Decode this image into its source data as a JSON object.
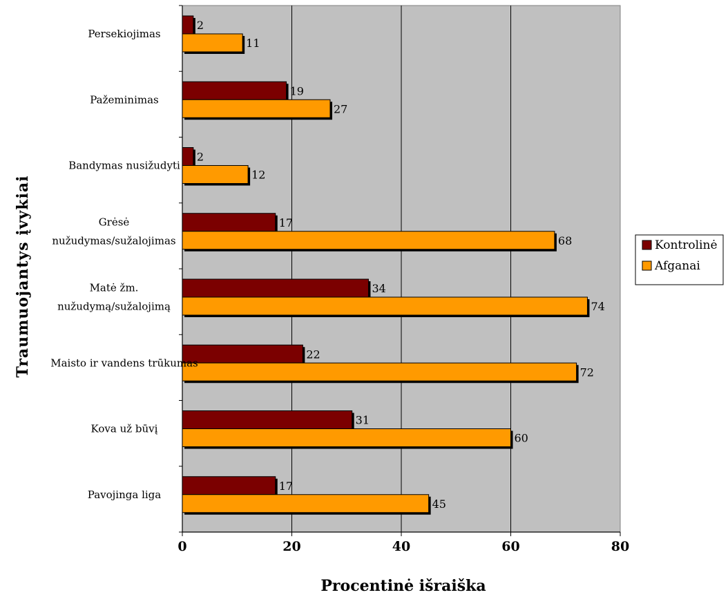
{
  "chart_data": {
    "type": "bar",
    "orientation": "horizontal",
    "categories": [
      [
        "Persekiojimas"
      ],
      [
        "Pažeminimas"
      ],
      [
        "Bandymas nusižudyti"
      ],
      [
        "Grėsė",
        "nužudymas/sužalojimas"
      ],
      [
        "Matė žm.",
        "nužudymą/sužalojimą"
      ],
      [
        "Maisto ir vandens trūkumas"
      ],
      [
        "Kova už būvį"
      ],
      [
        "Pavojinga liga"
      ]
    ],
    "series": [
      {
        "name": "Kontrolinė",
        "color": "#7b0000",
        "values": [
          2,
          19,
          2,
          17,
          34,
          22,
          31,
          17
        ]
      },
      {
        "name": "Afganai",
        "color": "#ff9a00",
        "values": [
          11,
          27,
          12,
          68,
          74,
          72,
          60,
          45
        ]
      }
    ],
    "xlabel": "Procentinė išraiška",
    "ylabel": "Traumuojantys įvykiai",
    "xlim": [
      0,
      80
    ],
    "xticks": [
      0,
      20,
      40,
      60,
      80
    ],
    "grid": true,
    "plot_background": "#c0c0c0",
    "legend_position": "right"
  }
}
